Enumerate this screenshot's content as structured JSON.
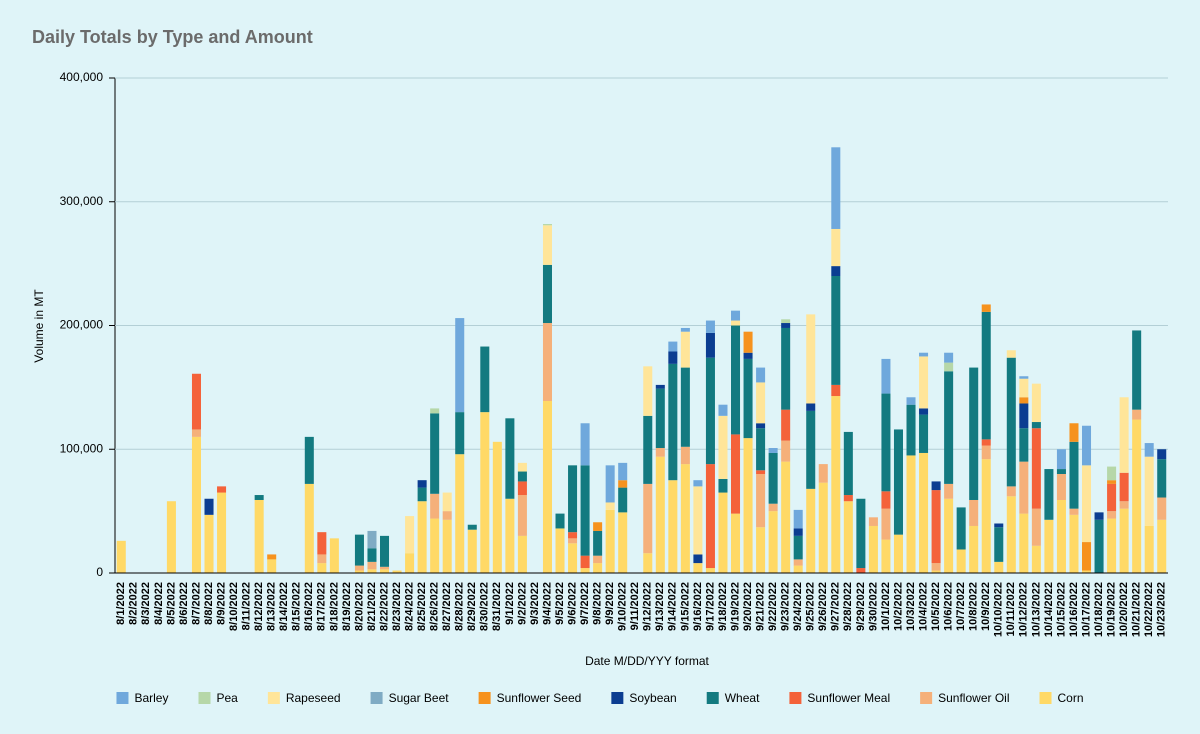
{
  "chart_data": {
    "type": "stacked_bar",
    "title": "Daily Totals by Type and Amount",
    "y_label": "Volume in MT",
    "x_label": "Date M/DD/YYY format",
    "ylim": [
      0,
      400000
    ],
    "yticks": [
      {
        "value": 0,
        "label": "0"
      },
      {
        "value": 100000,
        "label": "100,000"
      },
      {
        "value": 200000,
        "label": "200,000"
      },
      {
        "value": 300000,
        "label": "300,000"
      },
      {
        "value": 400000,
        "label": "400,000"
      }
    ],
    "grid": true,
    "legend": "bottom",
    "categories": [
      "8/1/2022",
      "8/2/2022",
      "8/3/2022",
      "8/4/2022",
      "8/5/2022",
      "8/6/2022",
      "8/7/2022",
      "8/8/2022",
      "8/9/2022",
      "8/10/2022",
      "8/11/2022",
      "8/12/2022",
      "8/13/2022",
      "8/14/2022",
      "8/15/2022",
      "8/16/2022",
      "8/17/2022",
      "8/18/2022",
      "8/19/2022",
      "8/20/2022",
      "8/21/2022",
      "8/22/2022",
      "8/23/2022",
      "8/24/2022",
      "8/25/2022",
      "8/26/2022",
      "8/27/2022",
      "8/28/2022",
      "8/29/2022",
      "8/30/2022",
      "8/31/2022",
      "9/1/2022",
      "9/2/2022",
      "9/3/2022",
      "9/4/2022",
      "9/5/2022",
      "9/6/2022",
      "9/7/2022",
      "9/8/2022",
      "9/9/2022",
      "9/10/2022",
      "9/11/2022",
      "9/12/2022",
      "9/13/2022",
      "9/14/2022",
      "9/15/2022",
      "9/16/2022",
      "9/17/2022",
      "9/18/2022",
      "9/19/2022",
      "9/20/2022",
      "9/21/2022",
      "9/22/2022",
      "9/23/2022",
      "9/24/2022",
      "9/25/2022",
      "9/26/2022",
      "9/27/2022",
      "9/28/2022",
      "9/29/2022",
      "9/30/2022",
      "10/1/2022",
      "10/2/2022",
      "10/3/2022",
      "10/4/2022",
      "10/5/2022",
      "10/6/2022",
      "10/7/2022",
      "10/8/2022",
      "10/9/2022",
      "10/10/2022",
      "10/11/2022",
      "10/12/2022",
      "10/13/2022",
      "10/14/2022",
      "10/15/2022",
      "10/16/2022",
      "10/17/2022",
      "10/18/2022",
      "10/19/2022",
      "10/20/2022",
      "10/21/2022",
      "10/22/2022",
      "10/23/2022"
    ],
    "series": [
      {
        "name": "Barley",
        "color": "#6fa8dc",
        "values": [
          0,
          0,
          0,
          0,
          0,
          0,
          0,
          0,
          0,
          0,
          0,
          0,
          0,
          0,
          0,
          0,
          0,
          0,
          0,
          0,
          0,
          0,
          0,
          0,
          0,
          0,
          0,
          76000,
          0,
          0,
          0,
          0,
          0,
          0,
          0,
          0,
          0,
          34000,
          0,
          30000,
          14000,
          0,
          0,
          0,
          8000,
          3000,
          5000,
          10000,
          9000,
          8000,
          0,
          12000,
          4000,
          0,
          15000,
          0,
          0,
          66000,
          0,
          0,
          0,
          28000,
          0,
          6000,
          3000,
          0,
          8000,
          0,
          0,
          0,
          0,
          0,
          2000,
          0,
          0,
          16000,
          0,
          32000,
          0,
          0,
          0,
          0,
          11000,
          0
        ]
      },
      {
        "name": "Pea",
        "color": "#b6d7a8",
        "values": [
          0,
          0,
          0,
          0,
          0,
          0,
          0,
          0,
          0,
          0,
          0,
          0,
          0,
          0,
          0,
          0,
          0,
          0,
          0,
          0,
          0,
          0,
          0,
          0,
          0,
          4000,
          0,
          0,
          0,
          0,
          0,
          0,
          0,
          0,
          1000,
          0,
          0,
          0,
          0,
          0,
          0,
          0,
          0,
          0,
          0,
          0,
          0,
          0,
          0,
          0,
          0,
          0,
          0,
          3000,
          0,
          0,
          0,
          0,
          0,
          0,
          0,
          0,
          0,
          0,
          0,
          0,
          7000,
          0,
          0,
          0,
          0,
          0,
          0,
          0,
          0,
          0,
          0,
          0,
          0,
          11000,
          0,
          0,
          0,
          0
        ]
      },
      {
        "name": "Rapeseed",
        "color": "#ffe599",
        "values": [
          0,
          0,
          0,
          0,
          0,
          0,
          0,
          0,
          0,
          0,
          0,
          0,
          0,
          0,
          0,
          0,
          0,
          0,
          0,
          0,
          0,
          0,
          0,
          30000,
          0,
          0,
          15000,
          0,
          0,
          0,
          0,
          0,
          7000,
          0,
          32000,
          0,
          0,
          0,
          0,
          6000,
          0,
          0,
          40000,
          0,
          0,
          29000,
          55000,
          0,
          51000,
          4000,
          0,
          33000,
          0,
          0,
          0,
          72000,
          0,
          30000,
          0,
          0,
          0,
          0,
          0,
          0,
          42000,
          0,
          0,
          0,
          0,
          0,
          0,
          6000,
          15000,
          31000,
          0,
          0,
          0,
          62000,
          0,
          0,
          61000,
          0,
          56000,
          0
        ]
      },
      {
        "name": "Sugar Beet",
        "color": "#7fabc4",
        "values": [
          0,
          0,
          0,
          0,
          0,
          0,
          0,
          0,
          0,
          0,
          0,
          0,
          0,
          0,
          0,
          0,
          0,
          0,
          0,
          0,
          14000,
          0,
          0,
          0,
          0,
          0,
          0,
          0,
          0,
          0,
          0,
          0,
          0,
          0,
          0,
          0,
          0,
          0,
          0,
          0,
          0,
          0,
          0,
          0,
          0,
          0,
          0,
          0,
          0,
          0,
          0,
          0,
          0,
          0,
          0,
          0,
          0,
          0,
          0,
          0,
          0,
          0,
          0,
          0,
          0,
          0,
          0,
          0,
          0,
          0,
          0,
          0,
          0,
          0,
          0,
          0,
          0,
          0,
          0,
          0,
          0,
          0,
          0,
          0
        ]
      },
      {
        "name": "Sunflower Seed",
        "color": "#f6921e",
        "values": [
          0,
          0,
          0,
          0,
          0,
          0,
          0,
          0,
          0,
          0,
          0,
          0,
          4000,
          0,
          0,
          0,
          0,
          0,
          0,
          0,
          0,
          0,
          0,
          0,
          0,
          0,
          0,
          0,
          0,
          0,
          0,
          0,
          0,
          0,
          0,
          0,
          0,
          0,
          7000,
          0,
          6000,
          0,
          0,
          0,
          0,
          0,
          0,
          0,
          0,
          0,
          17000,
          0,
          0,
          0,
          0,
          0,
          0,
          0,
          0,
          0,
          0,
          0,
          0,
          0,
          0,
          0,
          0,
          0,
          0,
          6000,
          0,
          0,
          5000,
          0,
          0,
          0,
          15000,
          23000,
          0,
          3000,
          0,
          0,
          0,
          0
        ]
      },
      {
        "name": "Soybean",
        "color": "#0b3d91",
        "values": [
          0,
          0,
          0,
          0,
          0,
          0,
          0,
          13000,
          0,
          0,
          0,
          0,
          0,
          0,
          0,
          0,
          0,
          0,
          0,
          0,
          0,
          0,
          0,
          0,
          6000,
          0,
          0,
          0,
          0,
          0,
          0,
          0,
          0,
          0,
          0,
          0,
          0,
          0,
          0,
          0,
          0,
          0,
          0,
          3000,
          10000,
          0,
          7000,
          20000,
          0,
          0,
          5000,
          4000,
          0,
          4000,
          6000,
          6000,
          0,
          8000,
          0,
          0,
          0,
          0,
          0,
          0,
          5000,
          7000,
          0,
          0,
          0,
          0,
          3000,
          0,
          20000,
          0,
          0,
          0,
          0,
          0,
          6000,
          0,
          0,
          0,
          0,
          8000
        ]
      },
      {
        "name": "Wheat",
        "color": "#137a80",
        "values": [
          0,
          0,
          0,
          0,
          0,
          0,
          0,
          0,
          0,
          0,
          0,
          4000,
          0,
          0,
          0,
          38000,
          0,
          0,
          0,
          25000,
          11000,
          25000,
          0,
          0,
          11000,
          65000,
          0,
          34000,
          4000,
          53000,
          0,
          65000,
          8000,
          0,
          47000,
          12000,
          54000,
          73000,
          20000,
          0,
          20000,
          0,
          55000,
          48000,
          94000,
          64000,
          0,
          86000,
          11000,
          88000,
          64000,
          34000,
          41000,
          66000,
          19000,
          63000,
          0,
          88000,
          51000,
          56000,
          0,
          79000,
          85000,
          41000,
          31000,
          0,
          91000,
          34000,
          107000,
          103000,
          28000,
          104000,
          27000,
          5000,
          41000,
          4000,
          54000,
          0,
          43000,
          0,
          0,
          64000,
          0,
          31000
        ]
      },
      {
        "name": "Sunflower Meal",
        "color": "#f4623a",
        "values": [
          0,
          0,
          0,
          0,
          0,
          0,
          45000,
          0,
          5000,
          0,
          0,
          0,
          0,
          0,
          0,
          0,
          18000,
          0,
          0,
          0,
          0,
          0,
          0,
          0,
          0,
          0,
          0,
          0,
          0,
          0,
          0,
          0,
          11000,
          0,
          0,
          0,
          5000,
          10000,
          0,
          0,
          0,
          0,
          0,
          0,
          0,
          0,
          0,
          84000,
          0,
          64000,
          0,
          3000,
          0,
          25000,
          0,
          0,
          0,
          9000,
          5000,
          4000,
          0,
          14000,
          0,
          0,
          0,
          59000,
          0,
          0,
          0,
          5000,
          0,
          0,
          0,
          65000,
          0,
          0,
          0,
          0,
          0,
          22000,
          23000,
          0,
          0,
          0
        ]
      },
      {
        "name": "Sunflower Oil",
        "color": "#f5b07a",
        "values": [
          0,
          0,
          0,
          0,
          0,
          0,
          6000,
          0,
          0,
          0,
          0,
          0,
          0,
          0,
          0,
          0,
          7000,
          0,
          0,
          4000,
          6000,
          2000,
          0,
          0,
          0,
          20000,
          7000,
          0,
          0,
          0,
          0,
          0,
          33000,
          0,
          63000,
          0,
          4000,
          0,
          6000,
          0,
          0,
          0,
          56000,
          7000,
          0,
          14000,
          0,
          0,
          0,
          0,
          0,
          43000,
          6000,
          17000,
          5000,
          0,
          15000,
          0,
          0,
          0,
          7000,
          25000,
          0,
          0,
          0,
          6000,
          12000,
          0,
          21000,
          11000,
          0,
          8000,
          42000,
          30000,
          0,
          21000,
          5000,
          0,
          0,
          6000,
          6000,
          8000,
          0,
          18000
        ]
      },
      {
        "name": "Corn",
        "color": "#ffd966",
        "values": [
          26000,
          0,
          0,
          0,
          58000,
          0,
          110000,
          47000,
          65000,
          0,
          0,
          59000,
          11000,
          0,
          0,
          72000,
          8000,
          28000,
          0,
          2000,
          3000,
          3000,
          2000,
          16000,
          58000,
          44000,
          43000,
          96000,
          35000,
          130000,
          106000,
          60000,
          30000,
          0,
          139000,
          36000,
          24000,
          4000,
          8000,
          51000,
          49000,
          0,
          16000,
          94000,
          75000,
          88000,
          8000,
          4000,
          65000,
          48000,
          109000,
          37000,
          50000,
          90000,
          6000,
          68000,
          73000,
          143000,
          58000,
          0,
          38000,
          27000,
          31000,
          95000,
          97000,
          2000,
          60000,
          19000,
          38000,
          92000,
          9000,
          62000,
          48000,
          22000,
          43000,
          59000,
          47000,
          2000,
          0,
          44000,
          52000,
          124000,
          38000,
          43000
        ]
      }
    ]
  }
}
